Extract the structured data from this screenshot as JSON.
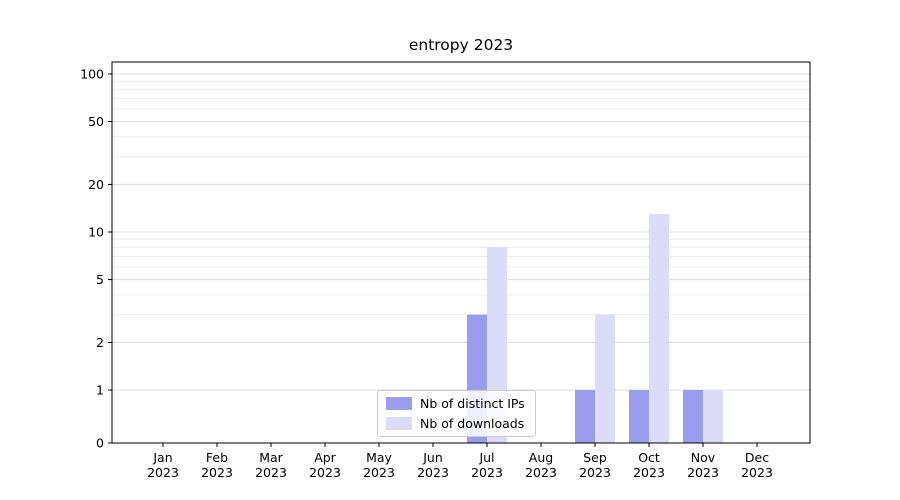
{
  "chart_data": {
    "type": "bar",
    "title": "entropy 2023",
    "categories": [
      "Jan 2023",
      "Feb 2023",
      "Mar 2023",
      "Apr 2023",
      "May 2023",
      "Jun 2023",
      "Jul 2023",
      "Aug 2023",
      "Sep 2023",
      "Oct 2023",
      "Nov 2023",
      "Dec 2023"
    ],
    "series": [
      {
        "name": "Nb of distinct IPs",
        "color": "#9c9cee",
        "values": [
          0,
          0,
          0,
          0,
          0,
          0,
          3,
          0,
          1,
          1,
          1,
          0
        ]
      },
      {
        "name": "Nb of downloads",
        "color": "#dcdcf8",
        "values": [
          0,
          0,
          0,
          0,
          0,
          0,
          8,
          0,
          3,
          13,
          1,
          0
        ]
      }
    ],
    "yscale": "symlog",
    "y_ticks": [
      0,
      1,
      2,
      5,
      10,
      20,
      50,
      100
    ],
    "y_minor_gridlines": [
      3,
      4,
      6,
      7,
      8,
      9,
      30,
      40,
      60,
      70,
      80,
      90
    ],
    "ylim": [
      0,
      110
    ],
    "xlabel": "",
    "ylabel": "",
    "grid": "horizontal",
    "legend_position": "lower-center-inside",
    "colors": {
      "gridline_major": "#dcdcdc",
      "gridline_minor": "#ececec",
      "axis": "#000000",
      "legend_border": "#cccccc"
    }
  }
}
